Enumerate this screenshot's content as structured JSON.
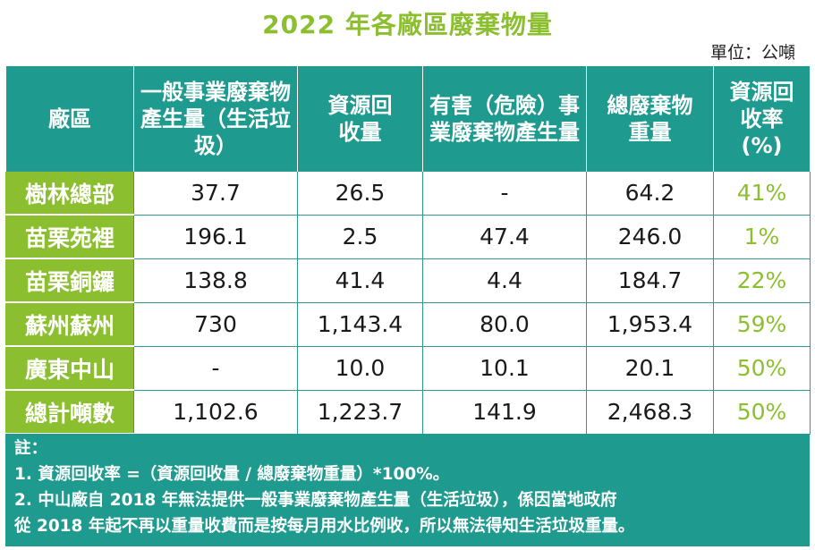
{
  "title": "2022 年各廠區廢棄物量",
  "unit": "單位：公噸",
  "headers": [
    "廠區",
    "一般事業廢棄物產生量（生活垃圾）",
    "資源回收量",
    "有害（危險）事業廢棄物產生量",
    "總廢棄物重量",
    "資源回收率(%)"
  ],
  "rows": [
    {
      "plant": "樹林總部",
      "general": "37.7",
      "recycled": "26.5",
      "hazardous": "-",
      "total": "64.2",
      "rate": "41%"
    },
    {
      "plant": "苗栗苑裡",
      "general": "196.1",
      "recycled": "2.5",
      "hazardous": "47.4",
      "total": "246.0",
      "rate": "1%"
    },
    {
      "plant": "苗栗銅鑼",
      "general": "138.8",
      "recycled": "41.4",
      "hazardous": "4.4",
      "total": "184.7",
      "rate": "22%"
    },
    {
      "plant": "蘇州蘇州",
      "general": "730",
      "recycled": "1,143.4",
      "hazardous": "80.0",
      "total": "1,953.4",
      "rate": "59%"
    },
    {
      "plant": "廣東中山",
      "general": "-",
      "recycled": "10.0",
      "hazardous": "10.1",
      "total": "20.1",
      "rate": "50%"
    },
    {
      "plant": "總計噸數",
      "general": "1,102.6",
      "recycled": "1,223.7",
      "hazardous": "141.9",
      "total": "2,468.3",
      "rate": "50%"
    }
  ],
  "notes": {
    "label": "註：",
    "line1": "1. 資源回收率 =（資源回收量 / 總廢棄物重量）*100%。",
    "line2": "2. 中山廠自 2018 年無法提供一般事業廢棄物產生量（生活垃圾），係因當地政府",
    "line3": "從 2018 年起不再以重量收費而是按每月用水比例收，所以無法得知生活垃圾重量。"
  },
  "colors": {
    "teal": "#1e9a8e",
    "green": "#8cbf2f"
  }
}
